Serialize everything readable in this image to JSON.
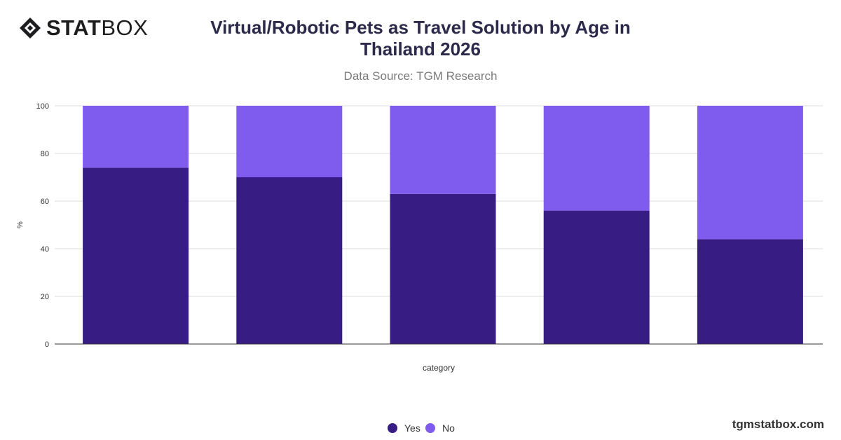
{
  "logo": {
    "strong": "STAT",
    "light": "BOX"
  },
  "title": "Virtual/Robotic Pets as Travel Solution by Age in Thailand 2026",
  "subtitle": "Data Source: TGM Research",
  "footer": "tgmstatbox.com",
  "colors": {
    "yes": "#371c84",
    "no": "#7f5cee",
    "grid": "#dddddd",
    "axis": "#333333"
  },
  "chart_data": {
    "type": "bar",
    "stacked": true,
    "categories": [
      "",
      "",
      "",
      "",
      ""
    ],
    "series": [
      {
        "name": "Yes",
        "values": [
          74,
          70,
          63,
          56,
          44
        ]
      },
      {
        "name": "No",
        "values": [
          26,
          30,
          37,
          44,
          56
        ]
      }
    ],
    "xlabel": "category",
    "ylabel": "%",
    "ylim": [
      0,
      100
    ],
    "yticks": [
      0,
      20,
      40,
      60,
      80,
      100
    ],
    "grid": true,
    "legend": "bottom-center"
  }
}
